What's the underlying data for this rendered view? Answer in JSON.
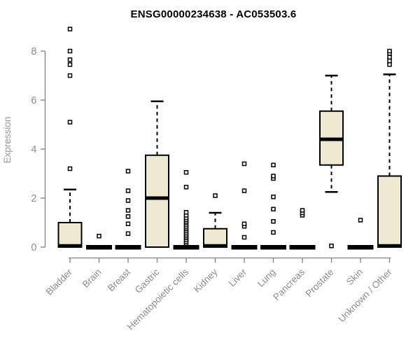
{
  "chart_data": {
    "type": "boxplot",
    "title": "ENSG00000234638 - AC053503.6",
    "ylabel": "Expression",
    "xlabel": "",
    "y_ticks": [
      0,
      2,
      4,
      6,
      8
    ],
    "ylim": [
      0,
      9.2
    ],
    "grid": false,
    "legend": "none",
    "categories": [
      "Bladder",
      "Brain",
      "Breast",
      "Gastric",
      "Hematopoietic cells",
      "Kidney",
      "Liver",
      "Lung",
      "Pancreas",
      "Prostate",
      "Skin",
      "Unknown / Other"
    ],
    "boxes": [
      {
        "category": "Bladder",
        "q1": 0,
        "median": 0.05,
        "q3": 1.0,
        "whisker_low": 0,
        "whisker_high": 2.35,
        "outliers": [
          3.2,
          5.1,
          7.0,
          7.45,
          7.65,
          8.0,
          8.9
        ]
      },
      {
        "category": "Brain",
        "q1": 0,
        "median": 0,
        "q3": 0,
        "whisker_low": 0,
        "whisker_high": 0,
        "outliers": [
          0.45
        ]
      },
      {
        "category": "Breast",
        "q1": 0,
        "median": 0,
        "q3": 0,
        "whisker_low": 0,
        "whisker_high": 0,
        "outliers": [
          0.55,
          0.95,
          1.25,
          1.5,
          1.9,
          2.3,
          3.1
        ]
      },
      {
        "category": "Gastric",
        "q1": 0,
        "median": 2.0,
        "q3": 3.75,
        "whisker_low": 0,
        "whisker_high": 5.95,
        "outliers": []
      },
      {
        "category": "Hematopoietic cells",
        "q1": 0,
        "median": 0,
        "q3": 0,
        "whisker_low": 0,
        "whisker_high": 0,
        "outliers": [
          0.15,
          0.22,
          0.3,
          0.38,
          0.45,
          0.52,
          0.6,
          0.68,
          0.75,
          0.82,
          0.9,
          0.98,
          1.05,
          1.12,
          1.2,
          1.3,
          1.42,
          2.45,
          3.05
        ]
      },
      {
        "category": "Kidney",
        "q1": 0,
        "median": 0.05,
        "q3": 0.75,
        "whisker_low": 0,
        "whisker_high": 1.4,
        "outliers": [
          2.1
        ]
      },
      {
        "category": "Liver",
        "q1": 0,
        "median": 0,
        "q3": 0,
        "whisker_low": 0,
        "whisker_high": 0,
        "outliers": [
          0.4,
          0.85,
          0.95,
          2.3,
          3.4
        ]
      },
      {
        "category": "Lung",
        "q1": 0,
        "median": 0,
        "q3": 0,
        "whisker_low": 0,
        "whisker_high": 0,
        "outliers": [
          0.6,
          1.05,
          1.55,
          2.05,
          2.8,
          2.9,
          3.35
        ]
      },
      {
        "category": "Pancreas",
        "q1": 0,
        "median": 0,
        "q3": 0,
        "whisker_low": 0,
        "whisker_high": 0,
        "outliers": [
          1.3,
          1.4,
          1.5
        ]
      },
      {
        "category": "Prostate",
        "q1": 3.35,
        "median": 4.4,
        "q3": 5.55,
        "whisker_low": 2.25,
        "whisker_high": 7.0,
        "outliers": [
          0.05
        ]
      },
      {
        "category": "Skin",
        "q1": 0,
        "median": 0,
        "q3": 0,
        "whisker_low": 0,
        "whisker_high": 0,
        "outliers": [
          1.1
        ]
      },
      {
        "category": "Unknown / Other",
        "q1": 0,
        "median": 0.05,
        "q3": 2.9,
        "whisker_low": 0,
        "whisker_high": 7.05,
        "outliers": [
          7.45,
          7.6,
          7.75,
          7.9,
          8.0
        ]
      }
    ],
    "colors": {
      "box_fill": "#efe9d2",
      "box_stroke": "#000000",
      "median": "#000000",
      "axis": "#808080",
      "tick_label": "#8c8c8c",
      "axis_title": "#999999",
      "title": "#000000",
      "background": "#ffffff"
    }
  }
}
